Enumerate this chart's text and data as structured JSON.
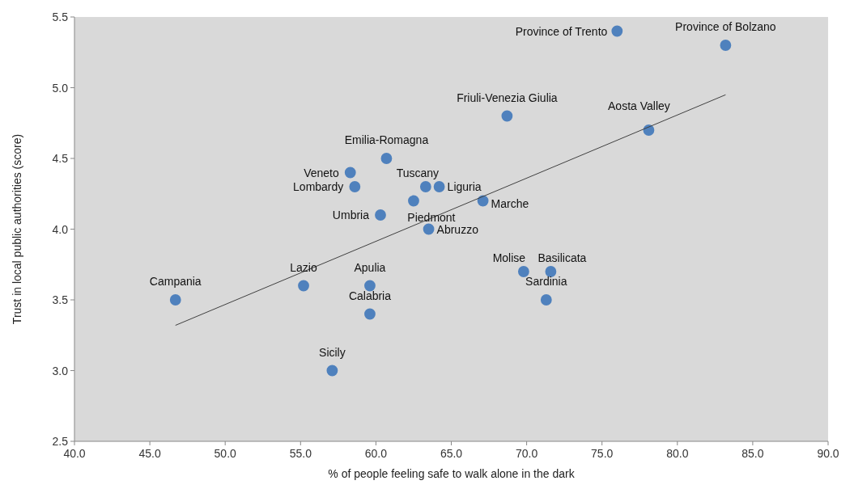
{
  "chart_data": {
    "type": "scatter",
    "xlabel": "% of people feeling safe to walk alone in the dark",
    "ylabel": "Trust in local public authorities (score)",
    "xlim": [
      40,
      90
    ],
    "xticks": [
      {
        "value": 40,
        "label": "40.0"
      },
      {
        "value": 45,
        "label": "45.0"
      },
      {
        "value": 50,
        "label": "50.0"
      },
      {
        "value": 55,
        "label": "55.0"
      },
      {
        "value": 60,
        "label": "60.0"
      },
      {
        "value": 65,
        "label": "65.0"
      },
      {
        "value": 70,
        "label": "70.0"
      },
      {
        "value": 75,
        "label": "75.0"
      },
      {
        "value": 80,
        "label": "80.0"
      },
      {
        "value": 85,
        "label": "85.0"
      },
      {
        "value": 90,
        "label": "90.0"
      }
    ],
    "ylim": [
      2.5,
      5.5
    ],
    "yticks": [
      {
        "value": 2.5,
        "label": "2.5"
      },
      {
        "value": 3,
        "label": "3.0"
      },
      {
        "value": 3.5,
        "label": "3.5"
      },
      {
        "value": 4,
        "label": "4.0"
      },
      {
        "value": 4.5,
        "label": "4.5"
      },
      {
        "value": 5,
        "label": "5.0"
      },
      {
        "value": 5.5,
        "label": "5.5"
      }
    ],
    "grid": false,
    "series": [
      {
        "marker": "circle",
        "color": "#4f81bd",
        "x": [
          46.7,
          55.2,
          57.1,
          59.6,
          59.6,
          58.3,
          58.6,
          60.7,
          60.3,
          62.5,
          63.3,
          64.2,
          63.5,
          67.1,
          68.7,
          69.8,
          71.6,
          71.3,
          76.0,
          83.2,
          78.1
        ],
        "values": [
          3.5,
          3.6,
          3.0,
          3.6,
          3.4,
          4.4,
          4.3,
          4.5,
          4.1,
          4.2,
          4.3,
          4.3,
          4.0,
          4.2,
          4.8,
          3.7,
          3.7,
          3.5,
          5.4,
          5.3,
          4.7
        ]
      },
      {
        "type": "line",
        "color": "#404040",
        "x": [
          46.7,
          83.2
        ],
        "values": [
          3.32,
          4.95
        ]
      }
    ],
    "annotations": [
      {
        "text": "Campania",
        "x": 46.7,
        "y": 3.5
      },
      {
        "text": "Lazio",
        "x": 55.2,
        "y": 3.6
      },
      {
        "text": "Sicily",
        "x": 57.1,
        "y": 3.0
      },
      {
        "text": "Apulia",
        "x": 59.6,
        "y": 3.6
      },
      {
        "text": "Calabria",
        "x": 59.6,
        "y": 3.4
      },
      {
        "text": "Veneto",
        "x": 58.3,
        "y": 4.4
      },
      {
        "text": "Lombardy",
        "x": 58.6,
        "y": 4.3
      },
      {
        "text": "Emilia-Romagna",
        "x": 60.7,
        "y": 4.5
      },
      {
        "text": "Umbria",
        "x": 60.3,
        "y": 4.1
      },
      {
        "text": "Piedmont",
        "x": 62.5,
        "y": 4.2
      },
      {
        "text": "Tuscany",
        "x": 63.3,
        "y": 4.3
      },
      {
        "text": "Liguria",
        "x": 64.2,
        "y": 4.3
      },
      {
        "text": "Abruzzo",
        "x": 63.5,
        "y": 4.0
      },
      {
        "text": "Marche",
        "x": 67.1,
        "y": 4.2
      },
      {
        "text": "Friuli-Venezia Giulia",
        "x": 68.7,
        "y": 4.8
      },
      {
        "text": "Molise",
        "x": 69.8,
        "y": 3.7
      },
      {
        "text": "Basilicata",
        "x": 71.6,
        "y": 3.7
      },
      {
        "text": "Sardinia",
        "x": 71.3,
        "y": 3.5
      },
      {
        "text": "Province of Trento",
        "x": 76.0,
        "y": 5.4
      },
      {
        "text": "Province of Bolzano",
        "x": 83.2,
        "y": 5.3
      },
      {
        "text": "Aosta Valley",
        "x": 78.1,
        "y": 4.7
      }
    ]
  }
}
